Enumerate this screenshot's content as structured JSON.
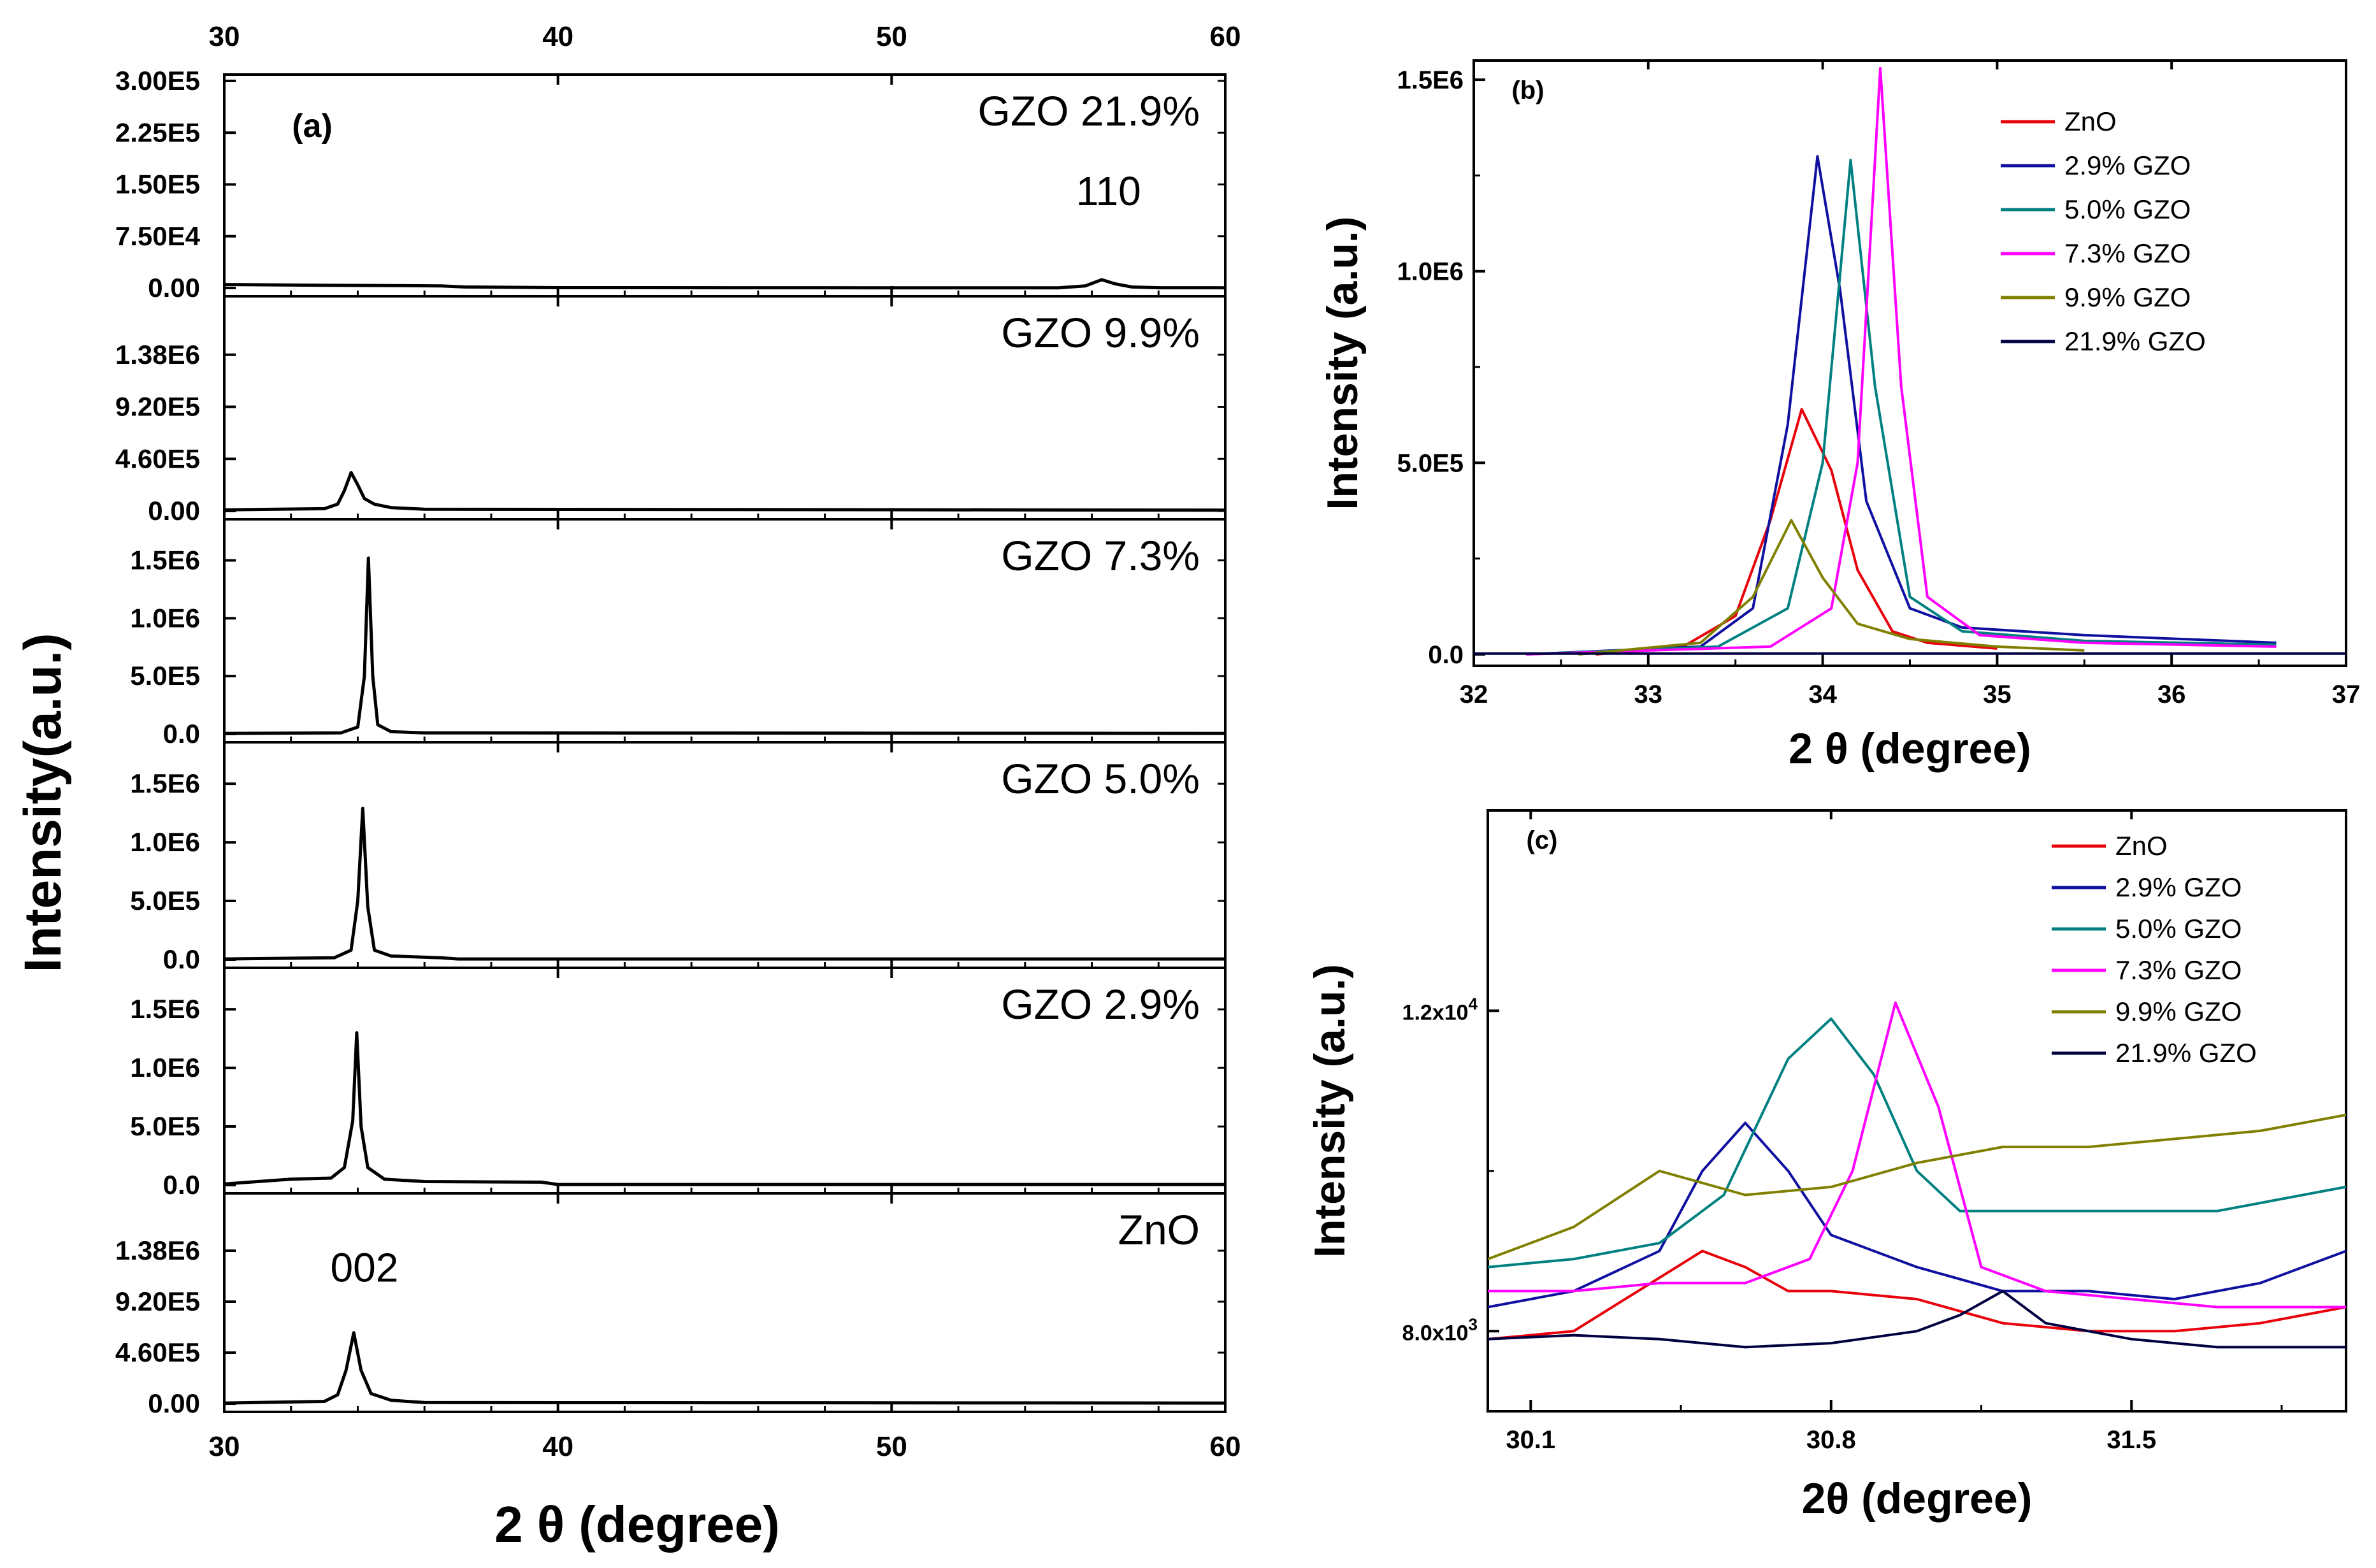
{
  "chart_data": [
    {
      "id": "a",
      "type": "line",
      "panel_label": "(a)",
      "xlabel": "2 θ  (degree)",
      "ylabel": "Intensity(a.u.)",
      "xlim": [
        30,
        60
      ],
      "xticks": [
        "30",
        "40",
        "50",
        "60"
      ],
      "subplots": [
        {
          "name": "GZO 21.9%",
          "label": "GZO 21.9%",
          "ylim": [
            0,
            300000
          ],
          "yticks": [
            {
              "v": 0,
              "t": "0.00"
            },
            {
              "v": 75000,
              "t": "7.50E4"
            },
            {
              "v": 150000,
              "t": "1.50E5"
            },
            {
              "v": 225000,
              "t": "2.25E5"
            },
            {
              "v": 300000,
              "t": "3.00E5"
            }
          ],
          "x": [
            30,
            33,
            35,
            36.5,
            37.2,
            40,
            50,
            55,
            55.8,
            56.3,
            56.7,
            57.2,
            58,
            60
          ],
          "y": [
            5000,
            4000,
            3500,
            3000,
            1500,
            500,
            300,
            300,
            3000,
            12000,
            6000,
            1500,
            400,
            300
          ],
          "annotations": [
            {
              "text": "110",
              "x": 56.5,
              "y": 120000
            }
          ]
        },
        {
          "name": "GZO 9.9%",
          "label": "GZO 9.9%",
          "ylim": [
            0,
            1840000
          ],
          "yticks": [
            {
              "v": 0,
              "t": "0.00"
            },
            {
              "v": 460000,
              "t": "4.60E5"
            },
            {
              "v": 920000,
              "t": "9.20E5"
            },
            {
              "v": 1380000,
              "t": "1.38E6"
            }
          ],
          "x": [
            30,
            33,
            33.4,
            33.6,
            33.8,
            34.0,
            34.2,
            34.5,
            35,
            36,
            60
          ],
          "y": [
            10000,
            20000,
            60000,
            180000,
            340000,
            230000,
            110000,
            60000,
            30000,
            15000,
            8000
          ],
          "annotations": []
        },
        {
          "name": "GZO 7.3%",
          "label": "GZO 7.3%",
          "ylim": [
            0,
            1800000
          ],
          "yticks": [
            {
              "v": 0,
              "t": "0.0"
            },
            {
              "v": 500000,
              "t": "5.0E5"
            },
            {
              "v": 1000000,
              "t": "1.0E6"
            },
            {
              "v": 1500000,
              "t": "1.5E6"
            }
          ],
          "x": [
            30,
            33.5,
            34.0,
            34.2,
            34.32,
            34.45,
            34.6,
            35,
            36,
            60
          ],
          "y": [
            5000,
            10000,
            60000,
            500000,
            1520000,
            500000,
            80000,
            20000,
            10000,
            5000
          ],
          "annotations": []
        },
        {
          "name": "GZO 5.0%",
          "label": "GZO 5.0%",
          "ylim": [
            0,
            1800000
          ],
          "yticks": [
            {
              "v": 0,
              "t": "0.0"
            },
            {
              "v": 500000,
              "t": "5.0E5"
            },
            {
              "v": 1000000,
              "t": "1.0E6"
            },
            {
              "v": 1500000,
              "t": "1.5E6"
            }
          ],
          "x": [
            30,
            33.3,
            33.8,
            34.0,
            34.15,
            34.3,
            34.5,
            35,
            36.5,
            37,
            60
          ],
          "y": [
            5000,
            15000,
            80000,
            500000,
            1290000,
            450000,
            80000,
            30000,
            15000,
            5000,
            5000
          ],
          "annotations": []
        },
        {
          "name": "GZO 2.9%",
          "label": "GZO 2.9%",
          "ylim": [
            0,
            1800000
          ],
          "yticks": [
            {
              "v": 0,
              "t": "0.0"
            },
            {
              "v": 500000,
              "t": "5.0E5"
            },
            {
              "v": 1000000,
              "t": "1.0E6"
            },
            {
              "v": 1500000,
              "t": "1.5E6"
            }
          ],
          "x": [
            30,
            31,
            32,
            33.2,
            33.6,
            33.85,
            33.97,
            34.1,
            34.3,
            34.8,
            36,
            39.5,
            40,
            60
          ],
          "y": [
            10000,
            30000,
            50000,
            60000,
            150000,
            550000,
            1300000,
            500000,
            150000,
            50000,
            30000,
            25000,
            5000,
            5000
          ],
          "annotations": []
        },
        {
          "name": "ZnO",
          "label": "ZnO",
          "ylim": [
            0,
            1840000
          ],
          "yticks": [
            {
              "v": 0,
              "t": "0.00"
            },
            {
              "v": 460000,
              "t": "4.60E5"
            },
            {
              "v": 920000,
              "t": "9.20E5"
            },
            {
              "v": 1380000,
              "t": "1.38E6"
            }
          ],
          "x": [
            30,
            33,
            33.4,
            33.65,
            33.88,
            34.1,
            34.4,
            35,
            36,
            60
          ],
          "y": [
            5000,
            20000,
            80000,
            300000,
            640000,
            300000,
            90000,
            30000,
            10000,
            5000
          ],
          "annotations": [
            {
              "text": "002",
              "x": 34.2,
              "y": 1100000
            }
          ]
        }
      ]
    },
    {
      "id": "b",
      "type": "line",
      "panel_label": "(b)",
      "xlabel": "2 θ (degree)",
      "ylabel": "Intensity (a.u.)",
      "xlim": [
        32,
        37
      ],
      "ylim": [
        -30000,
        1550000
      ],
      "xticks": [
        {
          "v": 32,
          "t": "32"
        },
        {
          "v": 33,
          "t": "33"
        },
        {
          "v": 34,
          "t": "34"
        },
        {
          "v": 35,
          "t": "35"
        },
        {
          "v": 36,
          "t": "36"
        },
        {
          "v": 37,
          "t": "37"
        }
      ],
      "yticks": [
        {
          "v": 0,
          "t": "0.0"
        },
        {
          "v": 500000,
          "t": "5.0E5"
        },
        {
          "v": 1000000,
          "t": "1.0E6"
        },
        {
          "v": 1500000,
          "t": "1.5E6"
        }
      ],
      "series": [
        {
          "name": "ZnO",
          "label": "ZnO",
          "color": "#e8000b",
          "x": [
            32.7,
            33.2,
            33.5,
            33.7,
            33.88,
            34.05,
            34.2,
            34.4,
            34.6,
            35
          ],
          "y": [
            0,
            20000,
            100000,
            350000,
            640000,
            480000,
            220000,
            60000,
            30000,
            15000
          ]
        },
        {
          "name": "2.9% GZO",
          "label": "2.9% GZO",
          "color": "#1010a0",
          "x": [
            32.3,
            33.3,
            33.6,
            33.8,
            33.97,
            34.1,
            34.25,
            34.5,
            34.8,
            35.5,
            36.6
          ],
          "y": [
            0,
            20000,
            120000,
            600000,
            1300000,
            950000,
            400000,
            120000,
            70000,
            50000,
            30000
          ]
        },
        {
          "name": "5.0% GZO",
          "label": "5.0% GZO",
          "color": "#008080",
          "x": [
            32.3,
            33.4,
            33.8,
            34.0,
            34.16,
            34.3,
            34.5,
            34.8,
            35.5,
            36.6
          ],
          "y": [
            0,
            20000,
            120000,
            500000,
            1290000,
            700000,
            150000,
            60000,
            35000,
            25000
          ]
        },
        {
          "name": "7.3% GZO",
          "label": "7.3% GZO",
          "color": "#ff00ff",
          "x": [
            32.3,
            33.7,
            34.05,
            34.2,
            34.33,
            34.45,
            34.6,
            34.9,
            35.5,
            36.6
          ],
          "y": [
            0,
            20000,
            120000,
            500000,
            1530000,
            700000,
            150000,
            50000,
            30000,
            20000
          ]
        },
        {
          "name": "9.9% GZO",
          "label": "9.9% GZO",
          "color": "#808000",
          "x": [
            32.6,
            33.3,
            33.6,
            33.82,
            34.0,
            34.2,
            34.5,
            35,
            35.5
          ],
          "y": [
            0,
            30000,
            150000,
            350000,
            200000,
            80000,
            40000,
            20000,
            10000
          ]
        },
        {
          "name": "21.9% GZO",
          "label": "21.9% GZO",
          "color": "#000040",
          "x": [
            32,
            37
          ],
          "y": [
            2000,
            2000
          ]
        }
      ]
    },
    {
      "id": "c",
      "type": "line",
      "panel_label": "(c)",
      "xlabel": "2θ (degree)",
      "ylabel": "Intensity (a.u.)",
      "xlim": [
        30.0,
        32.0
      ],
      "ylim": [
        7000,
        14500
      ],
      "xticks": [
        {
          "v": 30.1,
          "t": "30.1"
        },
        {
          "v": 30.8,
          "t": "30.8"
        },
        {
          "v": 31.5,
          "t": "31.5"
        }
      ],
      "yticks": [
        {
          "v": 8000,
          "t": "8.0x10",
          "sup": "3"
        },
        {
          "v": 12000,
          "t": "1.2x10",
          "sup": "4"
        }
      ],
      "series": [
        {
          "name": "ZnO",
          "label": "ZnO",
          "color": "#e8000b",
          "x": [
            30.0,
            30.2,
            30.35,
            30.5,
            30.6,
            30.7,
            30.8,
            31.0,
            31.2,
            31.4,
            31.5,
            31.6,
            31.8,
            32.0
          ],
          "y": [
            7900,
            8000,
            8500,
            9000,
            8800,
            8500,
            8500,
            8400,
            8100,
            8000,
            8000,
            8000,
            8100,
            8300
          ]
        },
        {
          "name": "2.9% GZO",
          "label": "2.9% GZO",
          "color": "#1010a0",
          "x": [
            30.0,
            30.2,
            30.4,
            30.5,
            30.6,
            30.7,
            30.8,
            31.0,
            31.2,
            31.4,
            31.6,
            31.8,
            32.0
          ],
          "y": [
            8300,
            8500,
            9000,
            10000,
            10600,
            10000,
            9200,
            8800,
            8500,
            8500,
            8400,
            8600,
            9000
          ]
        },
        {
          "name": "5.0% GZO",
          "label": "5.0% GZO",
          "color": "#008080",
          "x": [
            30.0,
            30.2,
            30.4,
            30.55,
            30.7,
            30.8,
            30.9,
            31.0,
            31.1,
            31.3,
            31.5,
            31.7,
            32.0
          ],
          "y": [
            8800,
            8900,
            9100,
            9700,
            11400,
            11900,
            11200,
            10000,
            9500,
            9500,
            9500,
            9500,
            9800
          ]
        },
        {
          "name": "7.3% GZO",
          "label": "7.3% GZO",
          "color": "#ff00ff",
          "x": [
            30.0,
            30.2,
            30.4,
            30.6,
            30.75,
            30.85,
            30.95,
            31.05,
            31.15,
            31.3,
            31.5,
            31.7,
            32.0
          ],
          "y": [
            8500,
            8500,
            8600,
            8600,
            8900,
            10000,
            12100,
            10800,
            8800,
            8500,
            8400,
            8300,
            8300
          ]
        },
        {
          "name": "9.9% GZO",
          "label": "9.9% GZO",
          "color": "#808000",
          "x": [
            30.0,
            30.2,
            30.4,
            30.6,
            30.8,
            31.0,
            31.2,
            31.4,
            31.6,
            31.8,
            32.0
          ],
          "y": [
            8900,
            9300,
            10000,
            9700,
            9800,
            10100,
            10300,
            10300,
            10400,
            10500,
            10700
          ]
        },
        {
          "name": "21.9% GZO",
          "label": "21.9% GZO",
          "color": "#000040",
          "x": [
            30.0,
            30.2,
            30.4,
            30.6,
            30.8,
            31.0,
            31.1,
            31.2,
            31.3,
            31.5,
            31.7,
            32.0
          ],
          "y": [
            7900,
            7950,
            7900,
            7800,
            7850,
            8000,
            8200,
            8500,
            8100,
            7900,
            7800,
            7800
          ]
        }
      ]
    }
  ]
}
